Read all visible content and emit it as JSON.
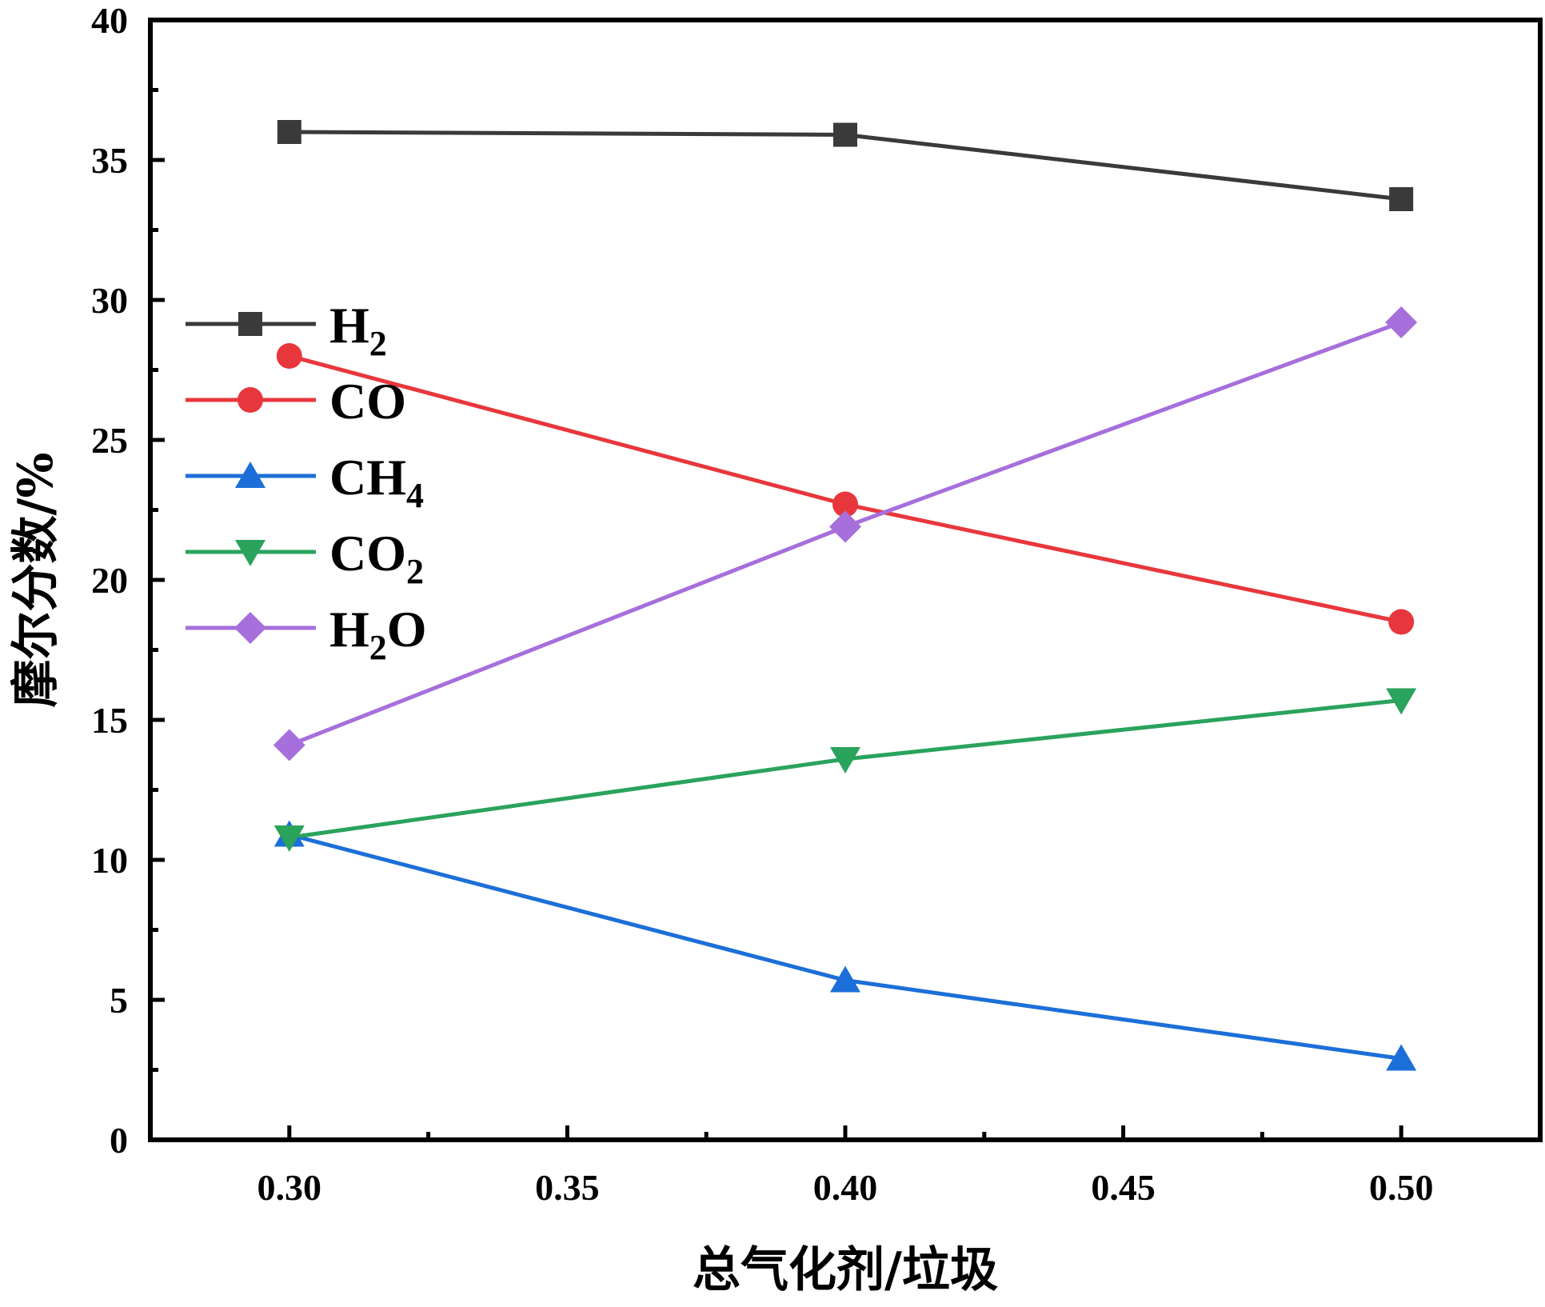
{
  "chart_data": {
    "type": "line",
    "xlabel": "总气化剂/垃圾",
    "ylabel": "摩尔分数/%",
    "xlim": [
      0.275,
      0.525
    ],
    "ylim": [
      0,
      40
    ],
    "xticks": [
      "0.30",
      "0.35",
      "0.40",
      "0.45",
      "0.50"
    ],
    "yticks": [
      "0",
      "5",
      "10",
      "15",
      "20",
      "25",
      "30",
      "35",
      "40"
    ],
    "x": [
      0.3,
      0.4,
      0.5
    ],
    "legend_position": "left",
    "grid": false,
    "series": [
      {
        "name": "H2",
        "label_base": "H",
        "label_sub": "2",
        "label_tail": "",
        "color": "#3a3a3a",
        "marker": "square",
        "values": [
          36.0,
          35.9,
          33.6
        ]
      },
      {
        "name": "CO",
        "label_base": "CO",
        "label_sub": "",
        "label_tail": "",
        "color": "#e8373c",
        "marker": "circle",
        "values": [
          28.0,
          22.7,
          18.5
        ]
      },
      {
        "name": "CH4",
        "label_base": "CH",
        "label_sub": "4",
        "label_tail": "",
        "color": "#1c6fd8",
        "marker": "triangle-up",
        "values": [
          10.9,
          5.7,
          2.9
        ]
      },
      {
        "name": "CO2",
        "label_base": "CO",
        "label_sub": "2",
        "label_tail": "",
        "color": "#2aa35c",
        "marker": "triangle-down",
        "values": [
          10.8,
          13.6,
          15.7
        ]
      },
      {
        "name": "H2O",
        "label_base": "H",
        "label_sub": "2",
        "label_tail": "O",
        "color": "#a66fdc",
        "marker": "diamond",
        "values": [
          14.1,
          21.9,
          29.2
        ]
      }
    ]
  }
}
